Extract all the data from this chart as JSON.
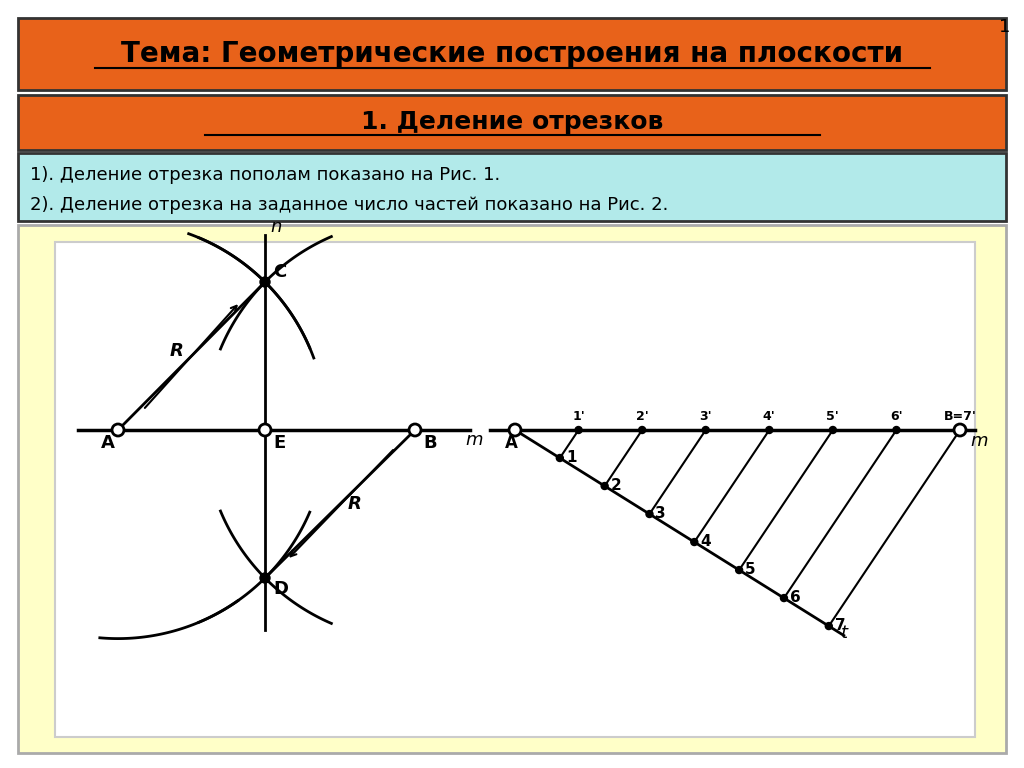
{
  "title1": "Тема: Геометрические построения на плоскости",
  "title2": "1. Деление отрезков",
  "text1": "1). Деление отрезка пополам показано на Рис. 1.",
  "text2": "2). Деление отрезка на заданное число частей показано на Рис. 2.",
  "bg_main": "#ffffff",
  "bg_title1": "#e8621a",
  "bg_title2": "#e8621a",
  "bg_text": "#b2eaea",
  "bg_diagram": "#ffffc8",
  "page_num": "1"
}
